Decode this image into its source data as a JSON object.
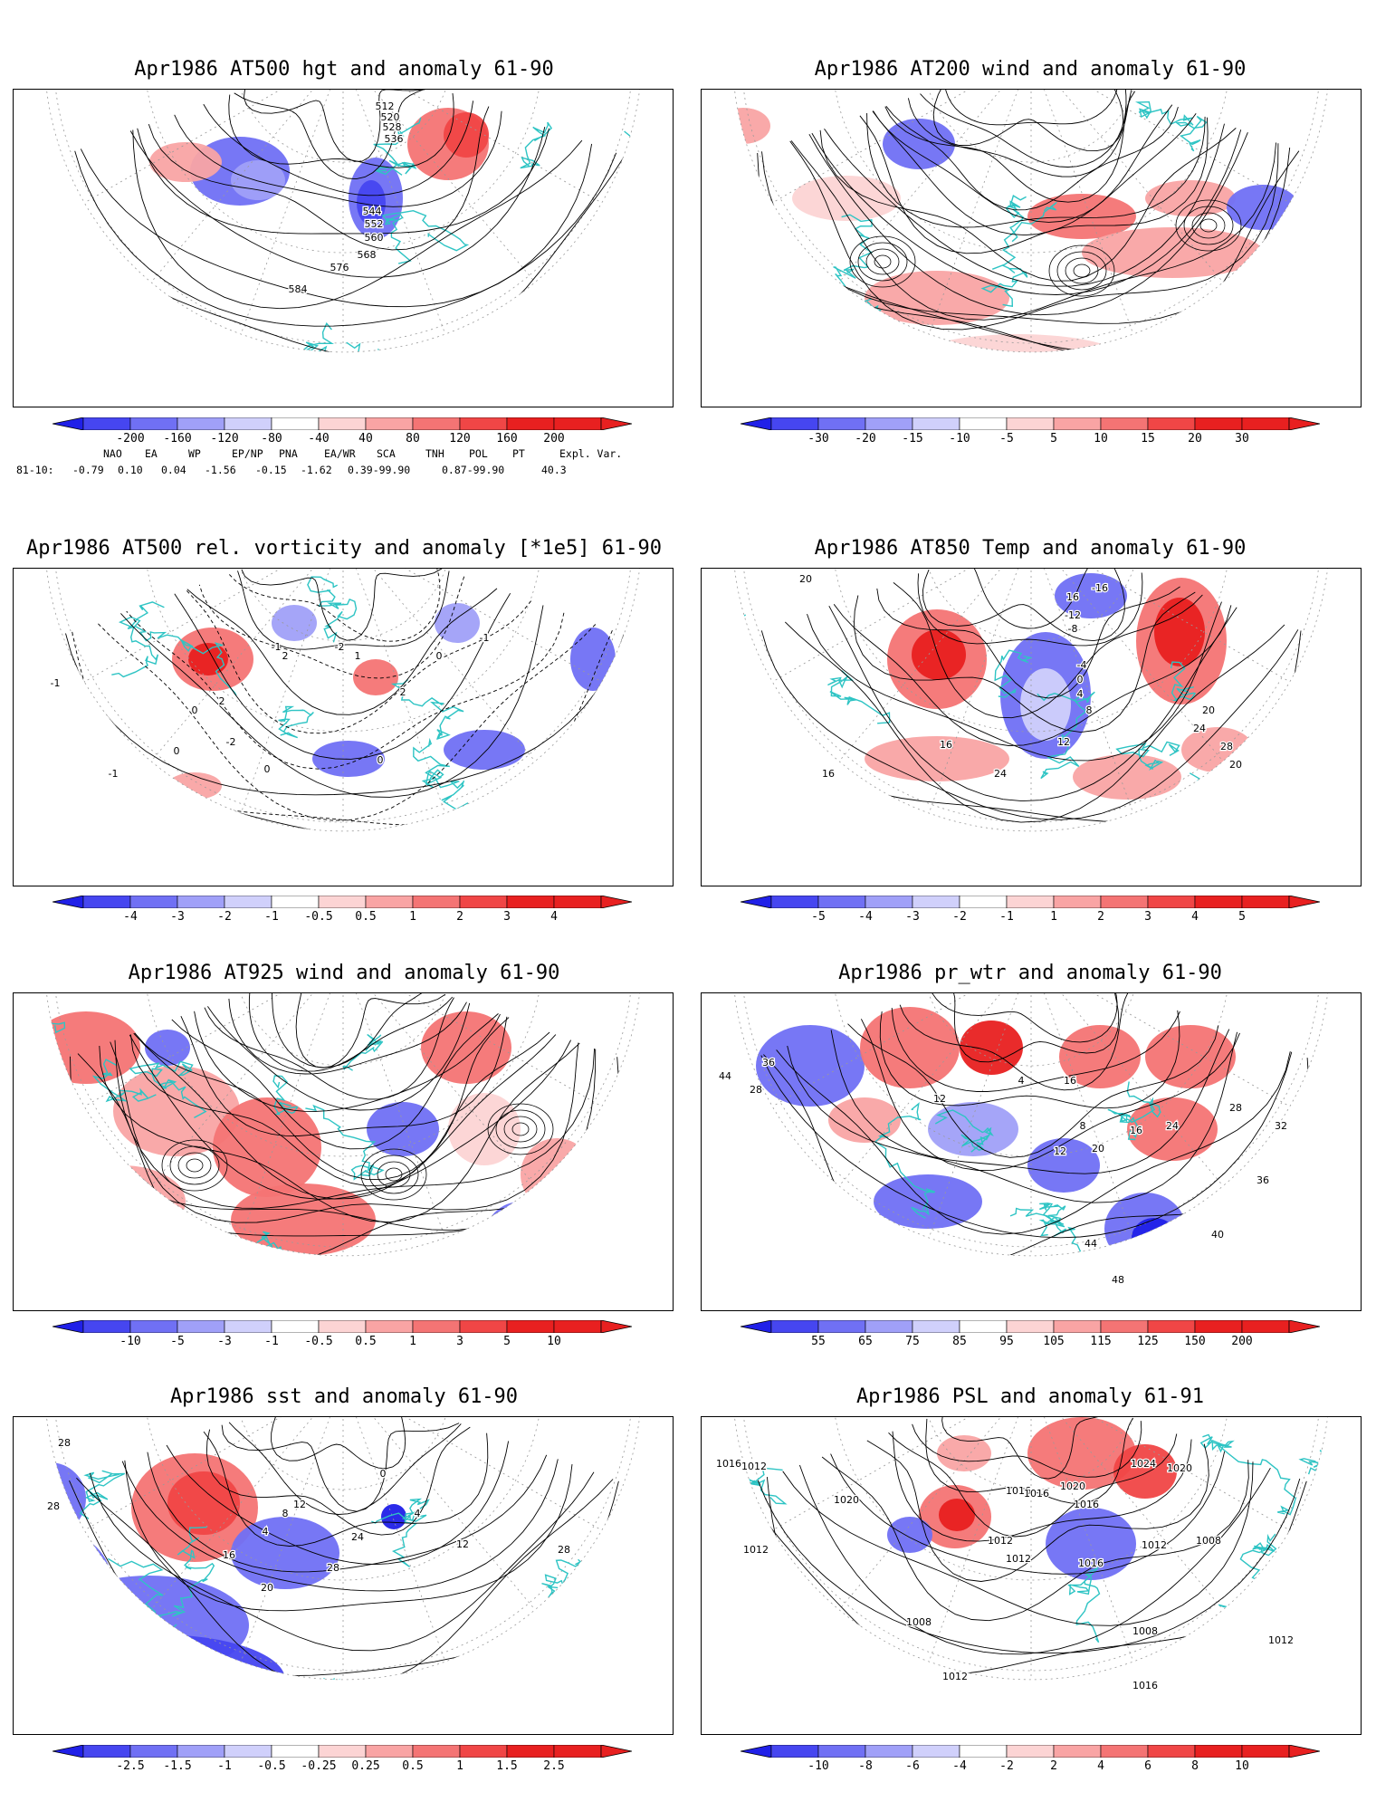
{
  "colors": {
    "coast": "#2ec4c4",
    "contour": "#000000",
    "grid": "#9a9a9a",
    "blue_ramp": [
      "#2020e8",
      "#4646f0",
      "#7070f4",
      "#a0a0f8",
      "#d0d0fb"
    ],
    "red_ramp": [
      "#fcd4d4",
      "#f9a4a4",
      "#f47474",
      "#f04646",
      "#e82020"
    ]
  },
  "panels": [
    {
      "id": "z500",
      "title": "Apr1986 AT500 hgt and anomaly 61-90",
      "field": "contours",
      "contour_labels": [
        "512",
        "520",
        "528",
        "536",
        "544",
        "552",
        "560",
        "568",
        "576",
        "584"
      ],
      "colorbar_labels": [
        "-200",
        "-160",
        "-120",
        "-80",
        "-40",
        "40",
        "80",
        "120",
        "160",
        "200"
      ],
      "anomaly_blobs": [
        {
          "sign": "-",
          "level": 3,
          "where": "central Canada / Hudson Bay"
        },
        {
          "sign": "+",
          "level": 3,
          "where": "Alaska / Yukon"
        },
        {
          "sign": "+",
          "level": 4,
          "where": "Barents Sea / northern Russia"
        },
        {
          "sign": "-",
          "level": 2,
          "where": "northern Pacific"
        }
      ]
    },
    {
      "id": "u200",
      "title": "Apr1986 AT200 wind and anomaly 61-90",
      "field": "streamlines",
      "colorbar_labels": [
        "-30",
        "-20",
        "-15",
        "-10",
        "-5",
        "5",
        "10",
        "15",
        "20",
        "30"
      ]
    },
    {
      "id": "vort500",
      "title": "Apr1986 AT500 rel. vorticity and anomaly [*1e5] 61-90",
      "field": "contours",
      "contour_labels": [
        "-1",
        "2",
        "0",
        "-1",
        "1",
        "-2",
        "2",
        "0",
        "-1",
        "-2",
        "0",
        "0",
        "-1",
        "2",
        "0"
      ],
      "colorbar_labels": [
        "-4",
        "-3",
        "-2",
        "-1",
        "-0.5",
        "0.5",
        "1",
        "2",
        "3",
        "4"
      ]
    },
    {
      "id": "t850",
      "title": "Apr1986 AT850 Temp and anomaly 61-90",
      "field": "contours",
      "contour_labels": [
        "20",
        "16",
        "-16",
        "-12",
        "-8",
        "-4",
        "0",
        "4",
        "8",
        "12",
        "16",
        "20",
        "24",
        "28",
        "24",
        "20",
        "16"
      ],
      "colorbar_labels": [
        "-5",
        "-4",
        "-3",
        "-2",
        "-1",
        "1",
        "2",
        "3",
        "4",
        "5"
      ]
    },
    {
      "id": "u925",
      "title": "Apr1986 AT925 wind and anomaly 61-90",
      "field": "streamlines",
      "colorbar_labels": [
        "-10",
        "-5",
        "-3",
        "-1",
        "-0.5",
        "0.5",
        "1",
        "3",
        "5",
        "10"
      ]
    },
    {
      "id": "pw",
      "title": "Apr1986 pr_wtr and anomaly 61-90",
      "field": "contours",
      "contour_labels": [
        "44",
        "36",
        "28",
        "12",
        "4",
        "16",
        "8",
        "12",
        "16",
        "20",
        "24",
        "28",
        "32",
        "36",
        "40",
        "44",
        "48"
      ],
      "colorbar_labels": [
        "55",
        "65",
        "75",
        "85",
        "95",
        "105",
        "115",
        "125",
        "150",
        "200"
      ]
    },
    {
      "id": "sst",
      "title": "Apr1986 sst and anomaly 61-90",
      "field": "contours",
      "contour_labels": [
        "28",
        "28",
        "4",
        "8",
        "12",
        "16",
        "20",
        "24",
        "28",
        "0",
        "4",
        "28",
        "12"
      ],
      "colorbar_labels": [
        "-2.5",
        "-1.5",
        "-1",
        "-0.5",
        "-0.25",
        "0.25",
        "0.5",
        "1",
        "1.5",
        "2.5"
      ]
    },
    {
      "id": "psl",
      "title": "Apr1986 PSL and anomaly 61-91",
      "field": "contours",
      "contour_labels": [
        "1016",
        "1012",
        "1020",
        "1016",
        "1012",
        "1016",
        "1024",
        "1020",
        "1016",
        "1012",
        "1008",
        "1012",
        "1016",
        "1020",
        "1012",
        "1008",
        "1012",
        "1016",
        "1012",
        "1008"
      ],
      "colorbar_labels": [
        "-10",
        "-8",
        "-6",
        "-4",
        "-2",
        "2",
        "4",
        "6",
        "8",
        "10"
      ]
    }
  ],
  "teleconnections": {
    "headers": [
      "NAO",
      "EA",
      "WP",
      "EP/NP",
      "PNA",
      "EA/WR",
      "SCA",
      "TNH",
      "POL",
      "PT",
      "Expl. Var."
    ],
    "row_label": "81-10:",
    "values": [
      "-0.79",
      "0.10",
      "0.04",
      "-1.56",
      "-0.15",
      "-1.62",
      "0.39-99.90",
      "",
      "0.87-99.90",
      "",
      "40.3"
    ]
  }
}
